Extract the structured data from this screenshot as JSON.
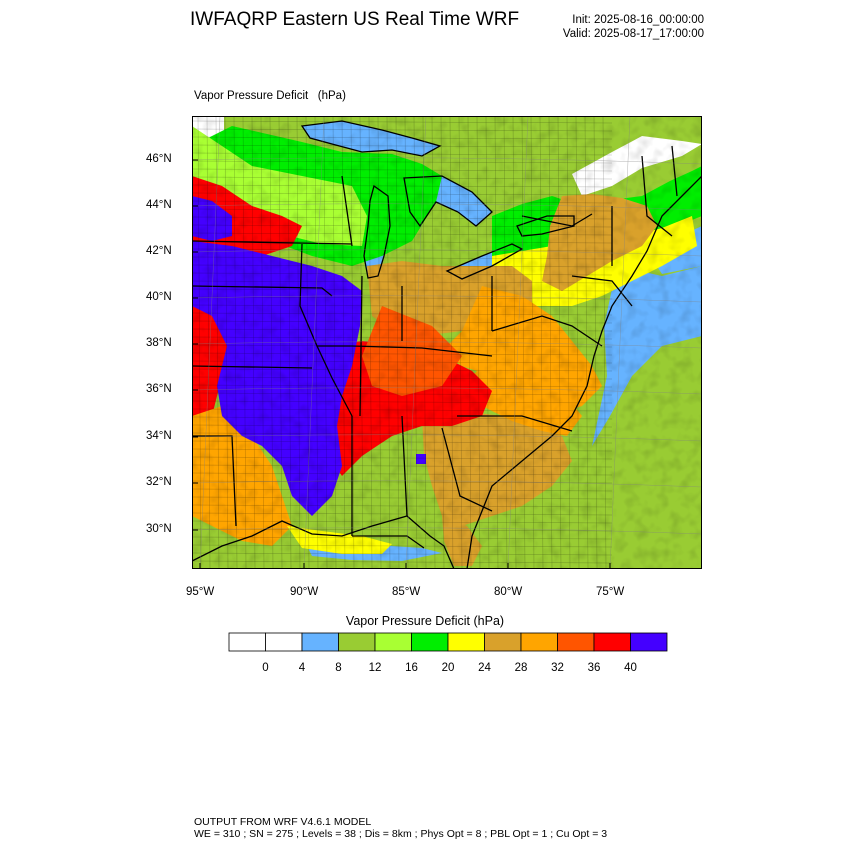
{
  "header": {
    "title": "IWFAQRP Eastern US Real Time WRF",
    "init": "Init: 2025-08-16_00:00:00",
    "valid": "Valid: 2025-08-17_17:00:00"
  },
  "panel": {
    "label": "Vapor Pressure Deficit   (hPa)"
  },
  "map": {
    "lat_labels": [
      "46°N",
      "44°N",
      "42°N",
      "40°N",
      "38°N",
      "36°N",
      "34°N",
      "32°N",
      "30°N"
    ],
    "lon_labels": [
      "95°W",
      "90°W",
      "85°W",
      "80°W",
      "75°W"
    ],
    "water_color": "#66b3ff",
    "land_default_color": "#99cc33"
  },
  "colorbar": {
    "title": "Vapor Pressure Deficit  (hPa)",
    "colors": [
      "#ffffff",
      "#ffffff",
      "#66b3ff",
      "#99cc33",
      "#a9ff33",
      "#00ee00",
      "#ffff00",
      "#d9a12b",
      "#ffa500",
      "#ff5500",
      "#ff0000",
      "#4400ff"
    ],
    "labels": [
      "0",
      "4",
      "8",
      "12",
      "16",
      "20",
      "24",
      "28",
      "32",
      "36",
      "40"
    ]
  },
  "footer": {
    "line1": "OUTPUT FROM WRF V4.6.1 MODEL",
    "line2": "WE = 310 ; SN = 275 ; Levels = 38 ; Dis = 8km ; Phys Opt = 8 ; PBL Opt = 1 ; Cu Opt = 3"
  }
}
